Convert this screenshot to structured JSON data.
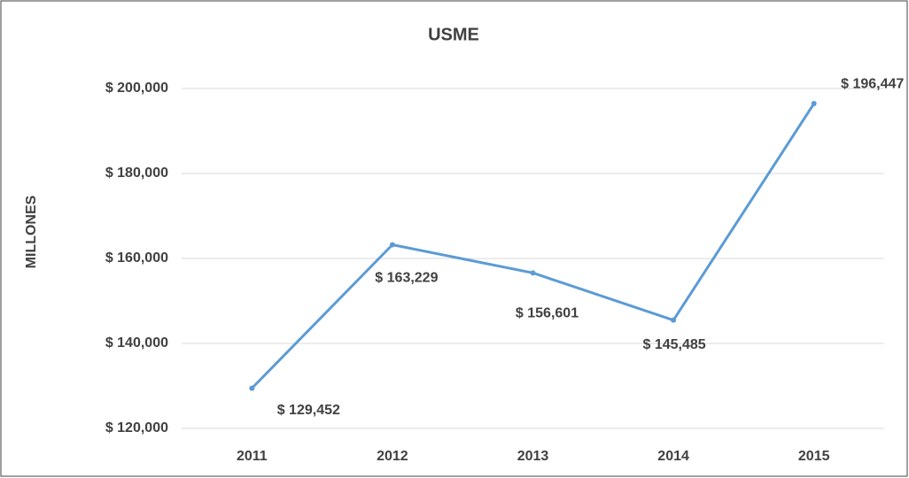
{
  "chart_data": {
    "type": "line",
    "title": "USME",
    "y_label": "MILLONES",
    "categories": [
      "2011",
      "2012",
      "2013",
      "2014",
      "2015"
    ],
    "series": [
      {
        "name": "USME",
        "color": "#5b9bd5",
        "values": [
          129452,
          163229,
          156601,
          145485,
          196447
        ],
        "value_labels": [
          "$ 129,452",
          "$ 163,229",
          "$ 156,601",
          "$ 145,485",
          "$ 196,447"
        ]
      }
    ],
    "ylim": [
      120000,
      200000
    ],
    "yticks": [
      {
        "value": 120000,
        "label": "$ 120,000"
      },
      {
        "value": 140000,
        "label": "$ 140,000"
      },
      {
        "value": 160000,
        "label": "$ 160,000"
      },
      {
        "value": 180000,
        "label": "$ 180,000"
      },
      {
        "value": 200000,
        "label": "$ 200,000"
      }
    ],
    "grid": true
  }
}
